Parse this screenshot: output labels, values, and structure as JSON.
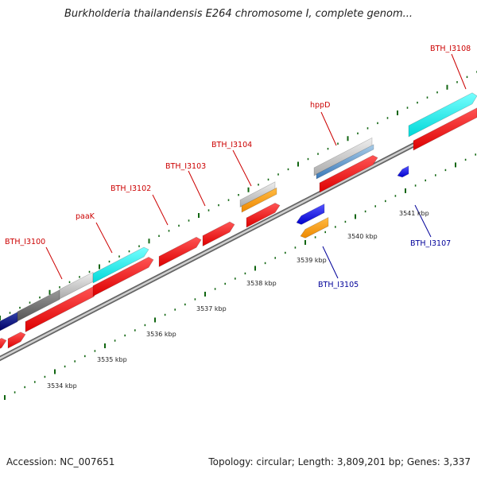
{
  "title": "Burkholderia thailandensis E264 chromosome I, complete genom...",
  "footer": {
    "accession": "Accession: NC_007651",
    "summary": "Topology: circular; Length: 3,809,201 bp; Genes: 3,337"
  },
  "colors": {
    "forward_label": "#cc0000",
    "reverse_label": "#000099",
    "cds": "#ff0000",
    "rna_orange": "#ff9900",
    "reverse_blue": "#0000ee",
    "cyan": "#00e5e5",
    "tick": "#006600",
    "backbone": "#888888"
  },
  "scale_labels": [
    "3534 kbp",
    "3535 kbp",
    "3536 kbp",
    "3537 kbp",
    "3538 kbp",
    "3539 kbp",
    "3540 kbp",
    "3541 kbp"
  ],
  "forward_gene_labels": [
    "BTH_I3100",
    "paaK",
    "BTH_I3102",
    "BTH_I3103",
    "BTH_I3104",
    "hppD",
    "BTH_I3108"
  ],
  "reverse_gene_labels": [
    "BTH_I3105",
    "BTH_I3107"
  ]
}
